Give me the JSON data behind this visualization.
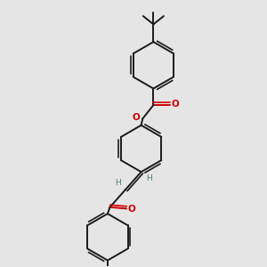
{
  "background_color": "#e5e5e5",
  "bond_color": "#1a1a1a",
  "oxygen_color": "#cc0000",
  "hydrogen_color": "#4a7a7a",
  "lw_single": 1.4,
  "lw_double_inner": 1.2,
  "figsize": [
    3.0,
    3.0
  ],
  "dpi": 100,
  "xlim": [
    0.15,
    0.95
  ],
  "ylim": [
    0.05,
    0.98
  ]
}
